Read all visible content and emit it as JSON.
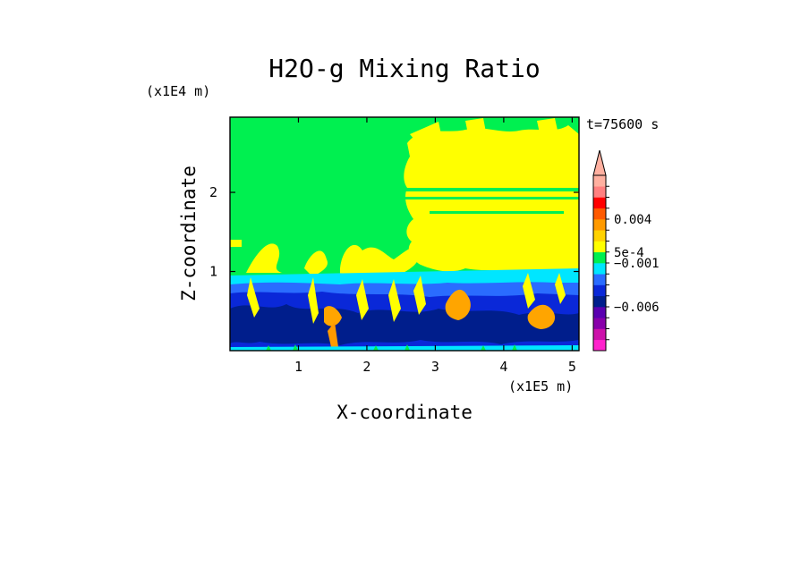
{
  "chart_data": {
    "type": "heatmap",
    "title": "H2O-g Mixing Ratio",
    "xlabel": "X-coordinate",
    "ylabel": "Z-coordinate",
    "x_unit": "(x1E5 m)",
    "y_unit": "(x1E4 m)",
    "time_label": "t=75600 s",
    "x_ticks": [
      "1",
      "2",
      "3",
      "4",
      "5"
    ],
    "y_ticks": [
      "1",
      "2"
    ],
    "xlim": [
      0,
      5.1
    ],
    "ylim": [
      0,
      2.95
    ],
    "colorbar": {
      "colors": [
        "#ff22cc",
        "#cc11aa",
        "#8800aa",
        "#5a00b0",
        "#001e8c",
        "#0a28d8",
        "#2a6cff",
        "#00e6ff",
        "#00f050",
        "#ffff00",
        "#ffd200",
        "#ff9a00",
        "#ff5a00",
        "#ff0000",
        "#ff8080",
        "#ffb0a0"
      ],
      "labels": [
        "0.004",
        "5e-4",
        "−0.001",
        "−0.006"
      ],
      "extend": "max"
    },
    "regions": {
      "green_background": "#00f050",
      "yellow": "#ffff00",
      "cyan": "#00e6ff",
      "dark_blue": "#001e8c",
      "blue": "#0a28d8",
      "light_blue": "#2a6cff",
      "orange": "#ffa500"
    }
  }
}
